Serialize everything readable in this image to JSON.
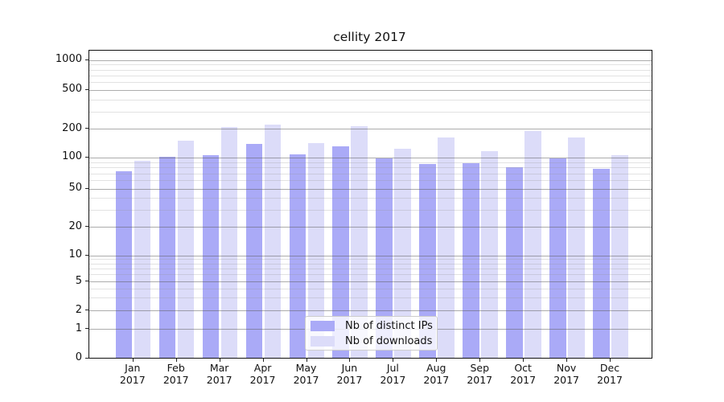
{
  "chart_data": {
    "type": "bar",
    "title": "cellity 2017",
    "categories": [
      "Jan",
      "Feb",
      "Mar",
      "Apr",
      "May",
      "Jun",
      "Jul",
      "Aug",
      "Sep",
      "Oct",
      "Nov",
      "Dec"
    ],
    "category_year": "2017",
    "series": [
      {
        "name": "Nb of distinct IPs",
        "color": "#aaaaf7",
        "values": [
          74,
          101,
          106,
          139,
          107,
          131,
          98,
          86,
          88,
          80,
          98,
          78
        ]
      },
      {
        "name": "Nb of downloads",
        "color": "#dcdcf9",
        "values": [
          93,
          149,
          210,
          220,
          142,
          211,
          123,
          163,
          116,
          191,
          161,
          105
        ]
      }
    ],
    "yscale": "symlog",
    "ylim": [
      0,
      1300
    ],
    "y_ticks": [
      0,
      1,
      2,
      5,
      10,
      20,
      50,
      100,
      200,
      500,
      1000
    ],
    "minor_gridlines": [
      900,
      800,
      700,
      600,
      400,
      300,
      90,
      80,
      70,
      60,
      40,
      30,
      9,
      8,
      7,
      6,
      4,
      3
    ],
    "grid": true,
    "legend_position": "lower center",
    "colors": {
      "major_grid": "#acacac",
      "minor_grid": "#e2e2e2",
      "axis": "#111111",
      "text": "#111111",
      "background": "#ffffff"
    }
  }
}
